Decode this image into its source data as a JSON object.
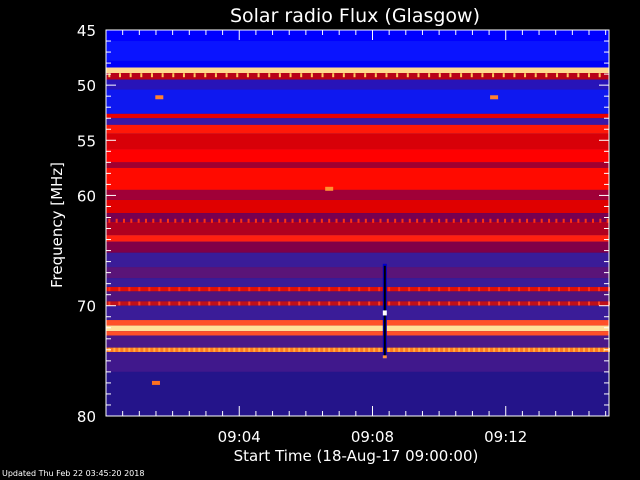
{
  "chart_data": {
    "type": "heatmap",
    "title": "Solar radio Flux (Glasgow)",
    "xlabel": "Start Time (18-Aug-17 09:00:00)",
    "ylabel": "Frequency [MHz]",
    "x_unit": "minutes after 09:00:00",
    "xlim": [
      0,
      15.1
    ],
    "ylim": [
      45,
      80
    ],
    "y_inverted": true,
    "x_ticks": [
      {
        "value": 4,
        "label": "09:04"
      },
      {
        "value": 8,
        "label": "09:08"
      },
      {
        "value": 12,
        "label": "09:12"
      }
    ],
    "y_ticks": [
      {
        "value": 45,
        "label": "45"
      },
      {
        "value": 50,
        "label": "50"
      },
      {
        "value": 55,
        "label": "55"
      },
      {
        "value": 60,
        "label": "60"
      },
      {
        "value": 70,
        "label": "70"
      },
      {
        "value": 80,
        "label": "80"
      }
    ],
    "background_color": "#1e1488",
    "bands": [
      {
        "f0": 45.0,
        "f1": 46.0,
        "color": "#0000ff"
      },
      {
        "f0": 46.0,
        "f1": 47.8,
        "color": "#0a14ff"
      },
      {
        "f0": 47.8,
        "f1": 48.4,
        "color": "#0000f8"
      },
      {
        "f0": 48.4,
        "f1": 48.9,
        "color": "#ffd890"
      },
      {
        "f0": 48.9,
        "f1": 49.5,
        "color": "#b80018"
      },
      {
        "f0": 49.5,
        "f1": 50.4,
        "color": "#2814b8"
      },
      {
        "f0": 50.4,
        "f1": 52.6,
        "color": "#0e18f0"
      },
      {
        "f0": 52.6,
        "f1": 53.0,
        "color": "#e80000"
      },
      {
        "f0": 53.0,
        "f1": 53.6,
        "color": "#3818a8"
      },
      {
        "f0": 53.6,
        "f1": 54.4,
        "color": "#ff1808"
      },
      {
        "f0": 54.4,
        "f1": 55.8,
        "color": "#d80008"
      },
      {
        "f0": 55.8,
        "f1": 57.0,
        "color": "#ff0000"
      },
      {
        "f0": 57.0,
        "f1": 57.5,
        "color": "#a00030"
      },
      {
        "f0": 57.5,
        "f1": 59.5,
        "color": "#ff0a00"
      },
      {
        "f0": 59.5,
        "f1": 60.4,
        "color": "#a00038"
      },
      {
        "f0": 60.4,
        "f1": 61.6,
        "color": "#e00000"
      },
      {
        "f0": 61.6,
        "f1": 62.4,
        "color": "#780050"
      },
      {
        "f0": 62.4,
        "f1": 63.6,
        "color": "#b00020"
      },
      {
        "f0": 63.6,
        "f1": 64.2,
        "color": "#ff2010"
      },
      {
        "f0": 64.2,
        "f1": 65.2,
        "color": "#800048"
      },
      {
        "f0": 65.2,
        "f1": 66.5,
        "color": "#3a1c98"
      },
      {
        "f0": 66.5,
        "f1": 67.5,
        "color": "#5a1478"
      },
      {
        "f0": 67.5,
        "f1": 68.3,
        "color": "#3a1c98"
      },
      {
        "f0": 68.3,
        "f1": 68.7,
        "color": "#e01008"
      },
      {
        "f0": 68.7,
        "f1": 69.6,
        "color": "#50147c"
      },
      {
        "f0": 69.6,
        "f1": 70.0,
        "color": "#c01018"
      },
      {
        "f0": 70.0,
        "f1": 71.3,
        "color": "#3a1c98"
      },
      {
        "f0": 71.3,
        "f1": 71.8,
        "color": "#ff5028"
      },
      {
        "f0": 71.8,
        "f1": 72.3,
        "color": "#ffe098"
      },
      {
        "f0": 72.3,
        "f1": 72.7,
        "color": "#ff5028"
      },
      {
        "f0": 72.7,
        "f1": 73.8,
        "color": "#4a1888"
      },
      {
        "f0": 73.8,
        "f1": 74.2,
        "color": "#ff7a20"
      },
      {
        "f0": 74.2,
        "f1": 76.0,
        "color": "#40188c"
      },
      {
        "f0": 76.0,
        "f1": 80.0,
        "color": "#24148a"
      }
    ],
    "tick_rows": [
      {
        "f": 49.1,
        "color": "#ffc860",
        "spacing_min": 0.32
      },
      {
        "f": 62.3,
        "color": "#ff3010",
        "spacing_min": 0.22
      },
      {
        "f": 68.5,
        "color": "#ff3018",
        "spacing_min": 0.3
      },
      {
        "f": 69.8,
        "color": "#ff4020",
        "spacing_min": 0.3
      },
      {
        "f": 74.0,
        "color": "#ffb040",
        "spacing_min": 0.15
      }
    ],
    "features": [
      {
        "label": "burst",
        "t": 8.37,
        "f0": 66.2,
        "f1": 74.8,
        "color": "#0000c8",
        "core_color": "#000000"
      },
      {
        "label": "spot",
        "t": 6.7,
        "f": 59.4,
        "color": "#ff9030"
      },
      {
        "label": "spot",
        "t": 1.6,
        "f": 51.1,
        "color": "#ff8030"
      },
      {
        "label": "spot",
        "t": 11.65,
        "f": 51.1,
        "color": "#ff8030"
      },
      {
        "label": "spot",
        "t": 1.5,
        "f": 77.0,
        "color": "#ff7020"
      }
    ]
  },
  "footer": {
    "updated_text": "Updated Thu Feb 22 03:45:20 2018"
  }
}
